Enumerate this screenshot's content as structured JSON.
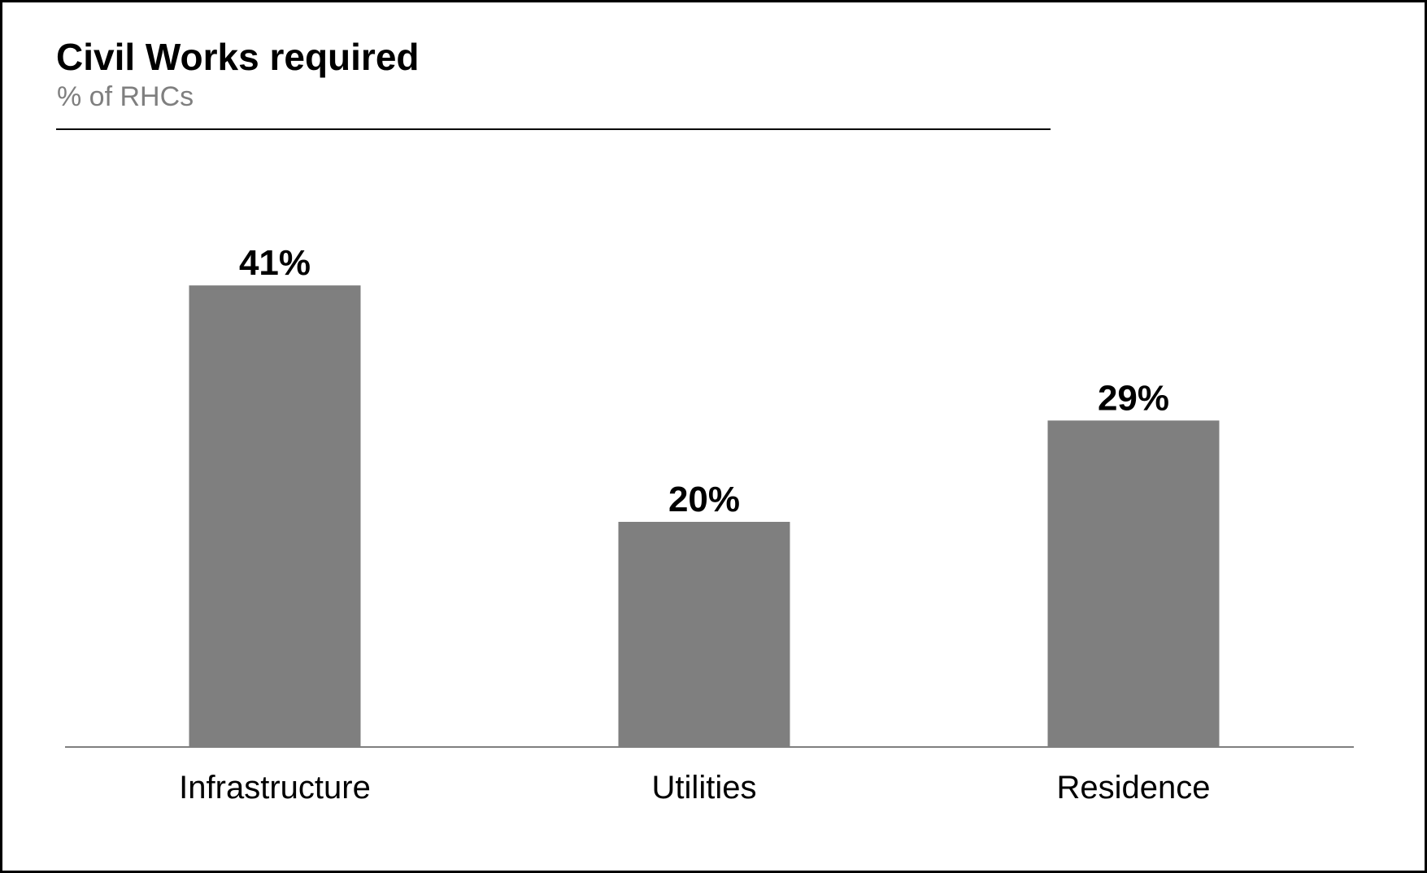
{
  "header": {
    "title": "Civil Works required",
    "subtitle": "% of RHCs"
  },
  "chart_data": {
    "type": "bar",
    "title": "Civil Works required",
    "subtitle": "% of RHCs",
    "categories": [
      "Infrastructure",
      "Utilities",
      "Residence"
    ],
    "values": [
      41,
      20,
      29
    ],
    "value_labels": [
      "41%",
      "20%",
      "29%"
    ],
    "unit": "%",
    "ylim": [
      0,
      45
    ],
    "bar_color": "#7f7f7f",
    "axis_color": "#7f7f7f",
    "grid": false,
    "legend": "none"
  }
}
